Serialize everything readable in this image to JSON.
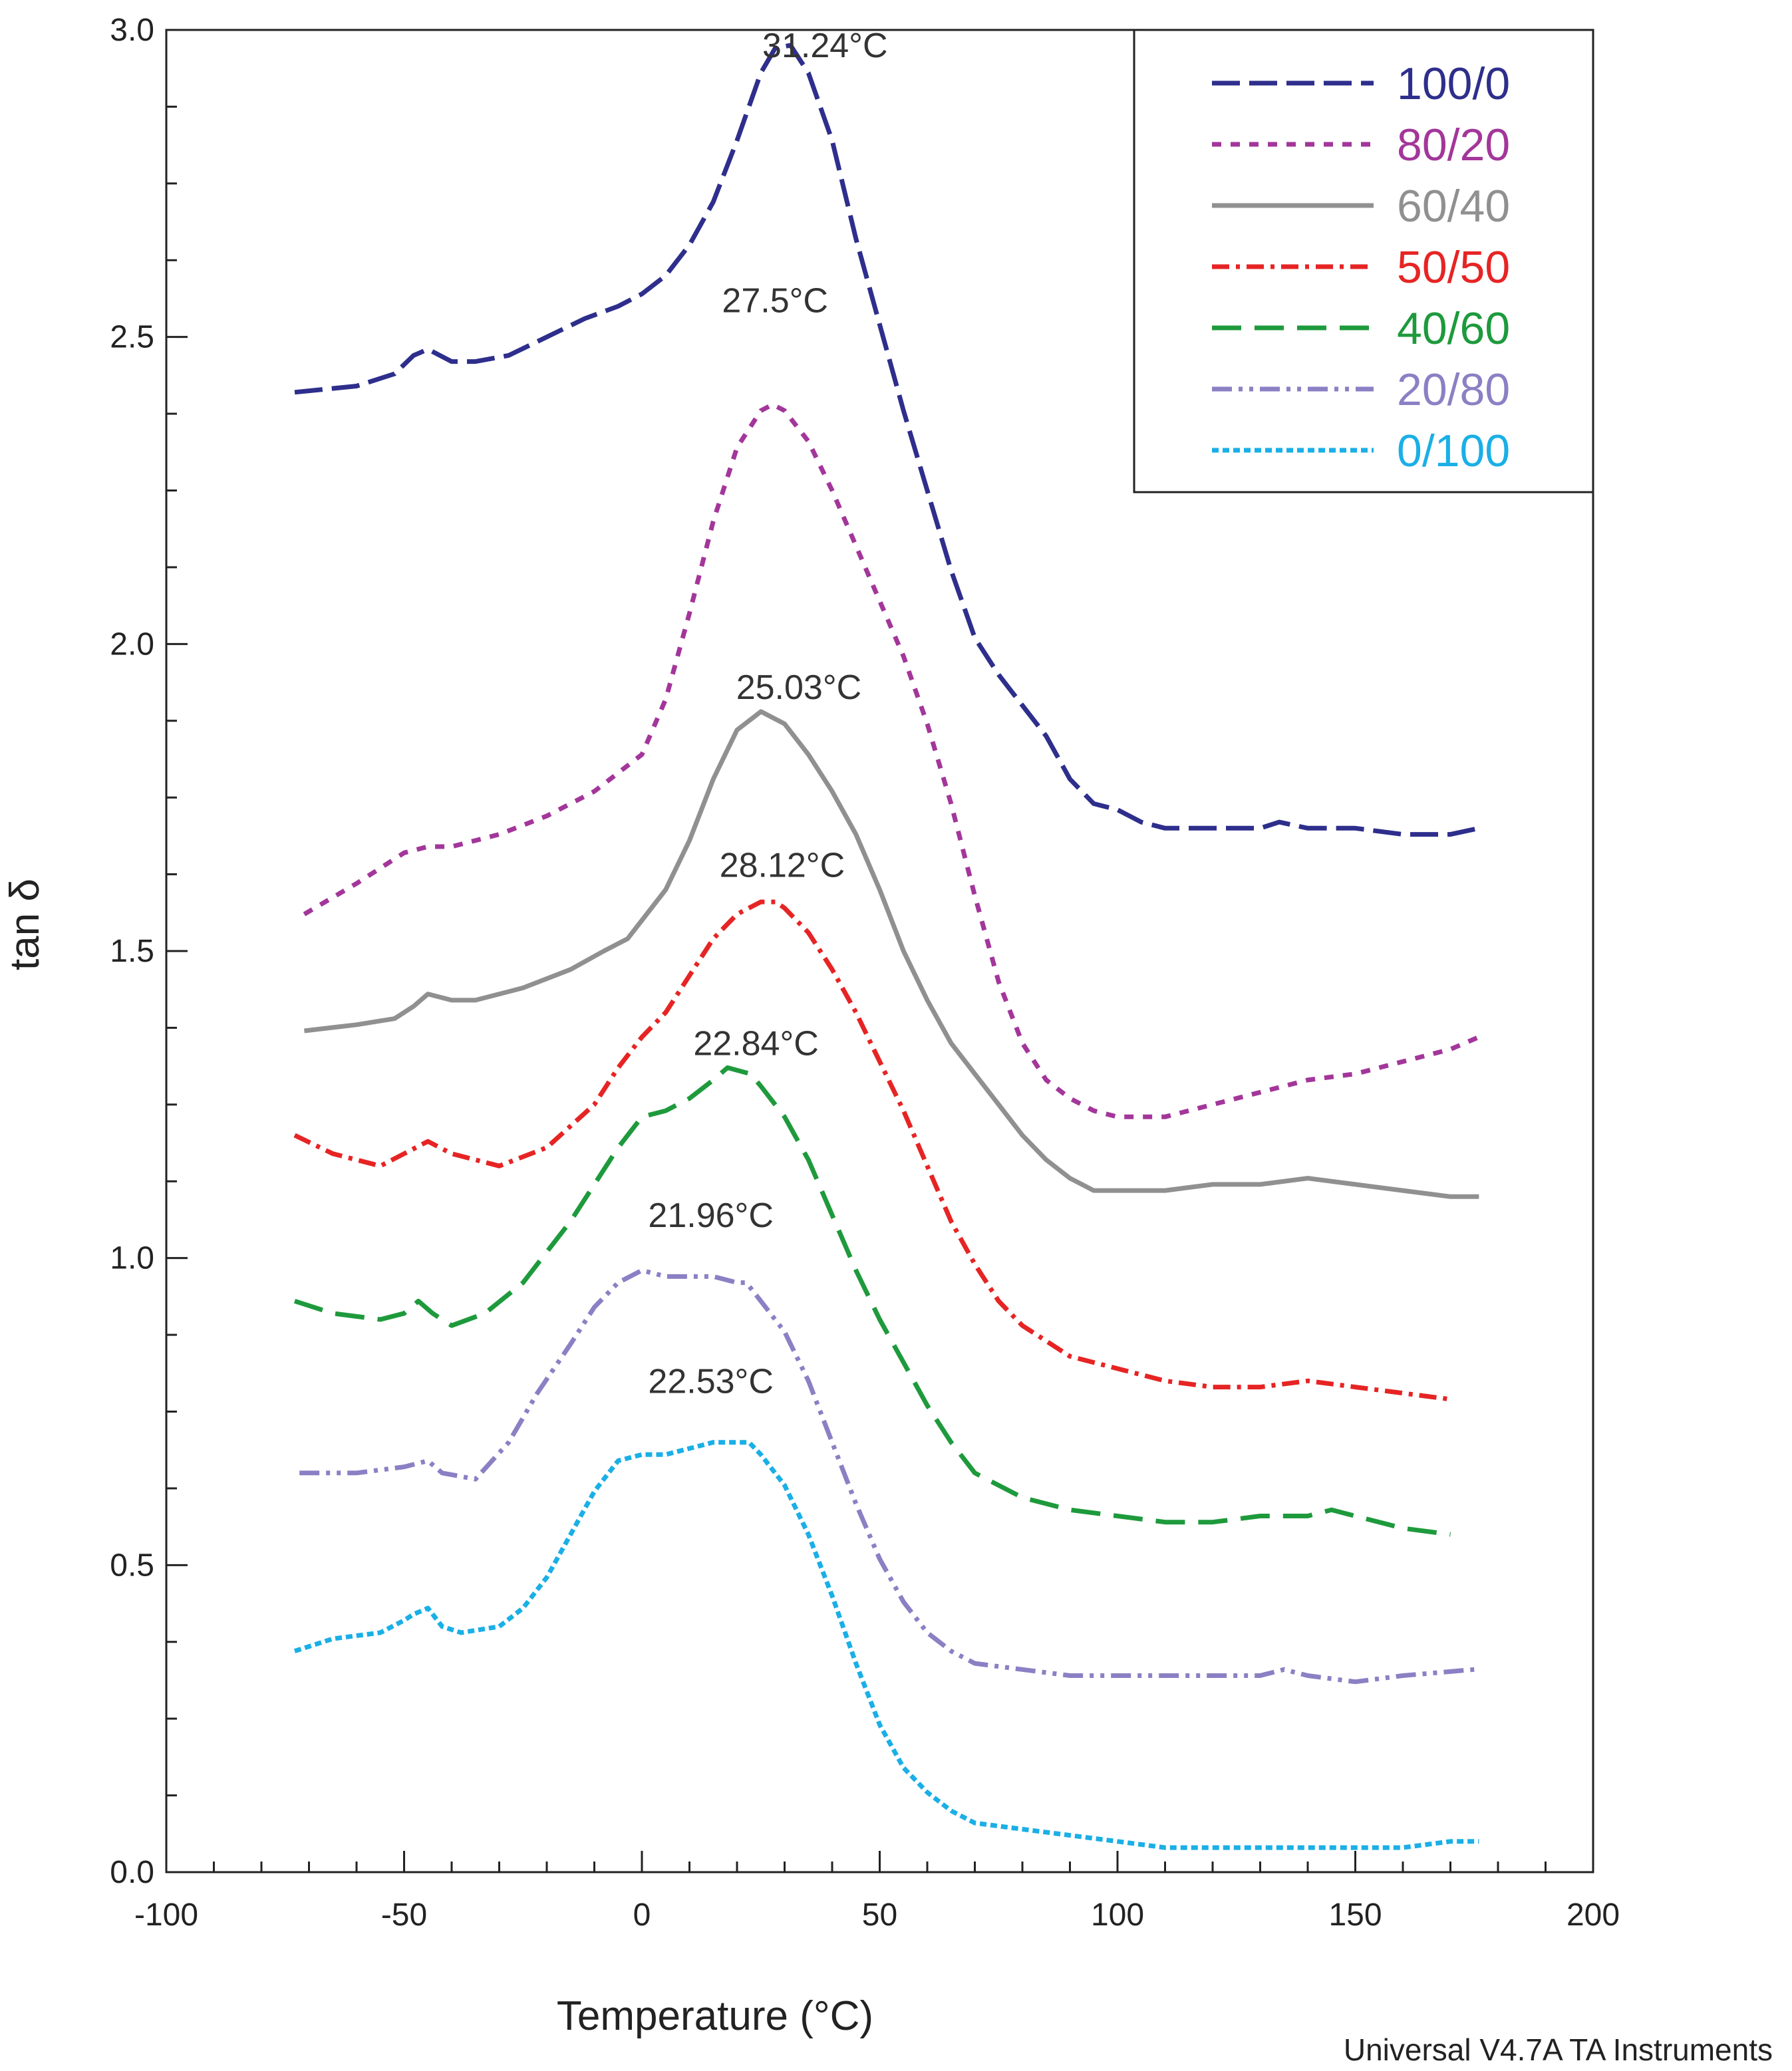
{
  "chart_data": {
    "type": "line",
    "xlabel": "Temperature (°C)",
    "ylabel": "tan δ",
    "xlim": [
      -100,
      200
    ],
    "ylim": [
      0,
      3.0
    ],
    "x_ticks": [
      -100,
      -50,
      0,
      50,
      100,
      150,
      200
    ],
    "x_tick_labels": [
      "-100",
      "-50",
      "0",
      "50",
      "100",
      "150",
      "200"
    ],
    "y_ticks": [
      0,
      0.5,
      1.0,
      1.5,
      2.0,
      2.5,
      3.0
    ],
    "y_tick_labels": [
      "0.0",
      "0.5",
      "1.0",
      "1.5",
      "2.0",
      "2.5",
      "3.0"
    ],
    "legend_position": "top-right",
    "footer": "Universal V4.7A TA Instruments",
    "series": [
      {
        "name": "100/0",
        "color": "#2e2e8c",
        "dash": "long-dash",
        "x": [
          -73,
          -60,
          -52,
          -48,
          -45,
          -40,
          -35,
          -28,
          -20,
          -12,
          -5,
          0,
          5,
          10,
          15,
          20,
          25,
          28,
          31.24,
          35,
          40,
          45,
          50,
          55,
          60,
          65,
          70,
          75,
          80,
          85,
          90,
          95,
          100,
          105,
          110,
          120,
          130,
          134,
          140,
          150,
          160,
          170,
          176
        ],
        "y": [
          2.41,
          2.42,
          2.44,
          2.47,
          2.48,
          2.46,
          2.46,
          2.47,
          2.5,
          2.53,
          2.55,
          2.57,
          2.6,
          2.65,
          2.72,
          2.82,
          2.93,
          2.97,
          2.975,
          2.93,
          2.82,
          2.66,
          2.52,
          2.38,
          2.25,
          2.12,
          2.01,
          1.95,
          1.9,
          1.85,
          1.78,
          1.74,
          1.73,
          1.71,
          1.7,
          1.7,
          1.7,
          1.71,
          1.7,
          1.7,
          1.69,
          1.69,
          1.7
        ]
      },
      {
        "name": "80/20",
        "color": "#a3369a",
        "dash": "short-dash",
        "x": [
          -71,
          -60,
          -50,
          -45,
          -40,
          -30,
          -20,
          -10,
          -5,
          0,
          5,
          10,
          15,
          20,
          25,
          27.5,
          30,
          35,
          40,
          45,
          50,
          55,
          60,
          65,
          70,
          75,
          80,
          85,
          90,
          95,
          100,
          105,
          110,
          120,
          130,
          140,
          150,
          160,
          170,
          176
        ],
        "y": [
          1.56,
          1.61,
          1.66,
          1.67,
          1.67,
          1.69,
          1.72,
          1.76,
          1.79,
          1.82,
          1.91,
          2.05,
          2.2,
          2.32,
          2.38,
          2.39,
          2.38,
          2.33,
          2.25,
          2.16,
          2.07,
          1.98,
          1.87,
          1.74,
          1.59,
          1.45,
          1.35,
          1.29,
          1.26,
          1.24,
          1.23,
          1.23,
          1.23,
          1.25,
          1.27,
          1.29,
          1.3,
          1.32,
          1.34,
          1.36
        ]
      },
      {
        "name": "60/40",
        "color": "#909090",
        "dash": "solid",
        "x": [
          -71,
          -60,
          -52,
          -48,
          -45,
          -40,
          -35,
          -25,
          -15,
          -8,
          -3,
          0,
          5,
          10,
          15,
          20,
          25.03,
          30,
          35,
          40,
          45,
          50,
          55,
          60,
          65,
          70,
          75,
          80,
          85,
          90,
          95,
          100,
          110,
          120,
          130,
          140,
          150,
          160,
          170,
          176
        ],
        "y": [
          1.37,
          1.38,
          1.39,
          1.41,
          1.43,
          1.42,
          1.42,
          1.44,
          1.47,
          1.5,
          1.52,
          1.55,
          1.6,
          1.68,
          1.78,
          1.86,
          1.89,
          1.87,
          1.82,
          1.76,
          1.69,
          1.6,
          1.5,
          1.42,
          1.35,
          1.3,
          1.25,
          1.2,
          1.16,
          1.13,
          1.11,
          1.11,
          1.11,
          1.12,
          1.12,
          1.13,
          1.12,
          1.11,
          1.1,
          1.1
        ]
      },
      {
        "name": "50/50",
        "color": "#e62424",
        "dash": "dash-dot",
        "x": [
          -73,
          -65,
          -55,
          -50,
          -45,
          -40,
          -30,
          -20,
          -10,
          -5,
          0,
          5,
          10,
          15,
          20,
          25,
          28.12,
          30,
          35,
          40,
          45,
          50,
          55,
          60,
          65,
          70,
          75,
          80,
          90,
          100,
          110,
          120,
          130,
          140,
          150,
          160,
          170
        ],
        "y": [
          1.2,
          1.17,
          1.15,
          1.17,
          1.19,
          1.17,
          1.15,
          1.18,
          1.25,
          1.31,
          1.36,
          1.4,
          1.46,
          1.52,
          1.56,
          1.58,
          1.58,
          1.57,
          1.53,
          1.47,
          1.4,
          1.32,
          1.24,
          1.15,
          1.06,
          0.99,
          0.93,
          0.89,
          0.84,
          0.82,
          0.8,
          0.79,
          0.79,
          0.8,
          0.79,
          0.78,
          0.77
        ]
      },
      {
        "name": "40/60",
        "color": "#1e9a3c",
        "dash": "long-gap-dash",
        "x": [
          -73,
          -65,
          -55,
          -50,
          -47,
          -44,
          -40,
          -33,
          -25,
          -20,
          -15,
          -10,
          -5,
          0,
          5,
          10,
          15,
          18,
          22.84,
          25,
          30,
          35,
          40,
          45,
          50,
          55,
          60,
          65,
          70,
          80,
          90,
          100,
          110,
          120,
          130,
          140,
          145,
          150,
          160,
          170
        ],
        "y": [
          0.93,
          0.91,
          0.9,
          0.91,
          0.93,
          0.91,
          0.89,
          0.91,
          0.96,
          1.01,
          1.06,
          1.12,
          1.18,
          1.23,
          1.24,
          1.26,
          1.29,
          1.31,
          1.3,
          1.28,
          1.23,
          1.16,
          1.07,
          0.98,
          0.9,
          0.83,
          0.76,
          0.7,
          0.65,
          0.61,
          0.59,
          0.58,
          0.57,
          0.57,
          0.58,
          0.58,
          0.59,
          0.58,
          0.56,
          0.55
        ]
      },
      {
        "name": "20/80",
        "color": "#8b80c4",
        "dash": "dash-dot-dot",
        "x": [
          -72,
          -60,
          -50,
          -45,
          -42,
          -35,
          -28,
          -22,
          -15,
          -10,
          -5,
          0,
          5,
          10,
          15,
          20,
          21.96,
          25,
          30,
          35,
          40,
          45,
          50,
          55,
          60,
          65,
          70,
          80,
          90,
          100,
          110,
          120,
          130,
          135,
          140,
          150,
          160,
          175
        ],
        "y": [
          0.65,
          0.65,
          0.66,
          0.67,
          0.65,
          0.64,
          0.7,
          0.78,
          0.86,
          0.92,
          0.96,
          0.98,
          0.97,
          0.97,
          0.97,
          0.96,
          0.96,
          0.93,
          0.88,
          0.8,
          0.7,
          0.6,
          0.51,
          0.44,
          0.39,
          0.36,
          0.34,
          0.33,
          0.32,
          0.32,
          0.32,
          0.32,
          0.32,
          0.33,
          0.32,
          0.31,
          0.32,
          0.33
        ]
      },
      {
        "name": "0/100",
        "color": "#1aafe6",
        "dash": "dotted",
        "x": [
          -73,
          -65,
          -55,
          -50,
          -48,
          -45,
          -42,
          -38,
          -30,
          -25,
          -20,
          -15,
          -10,
          -5,
          0,
          5,
          10,
          15,
          20,
          22.53,
          25,
          30,
          35,
          40,
          45,
          50,
          55,
          60,
          65,
          70,
          80,
          90,
          100,
          110,
          120,
          130,
          140,
          150,
          160,
          170,
          176
        ],
        "y": [
          0.36,
          0.38,
          0.39,
          0.41,
          0.42,
          0.43,
          0.4,
          0.39,
          0.4,
          0.43,
          0.48,
          0.55,
          0.62,
          0.67,
          0.68,
          0.68,
          0.69,
          0.7,
          0.7,
          0.7,
          0.68,
          0.63,
          0.55,
          0.45,
          0.34,
          0.24,
          0.17,
          0.13,
          0.1,
          0.08,
          0.07,
          0.06,
          0.05,
          0.04,
          0.04,
          0.04,
          0.04,
          0.04,
          0.04,
          0.05,
          0.05
        ]
      }
    ],
    "annotations": [
      {
        "text": "31.24°C",
        "x": 38.5,
        "y": 2.975
      },
      {
        "text": "27.5°C",
        "x": 28,
        "y": 2.56
      },
      {
        "text": "25.03°C",
        "x": 33,
        "y": 1.93
      },
      {
        "text": "28.12°C",
        "x": 29.5,
        "y": 1.64
      },
      {
        "text": "22.84°C",
        "x": 24,
        "y": 1.35
      },
      {
        "text": "21.96°C",
        "x": 14.5,
        "y": 1.07
      },
      {
        "text": "22.53°C",
        "x": 14.5,
        "y": 0.8
      }
    ]
  }
}
